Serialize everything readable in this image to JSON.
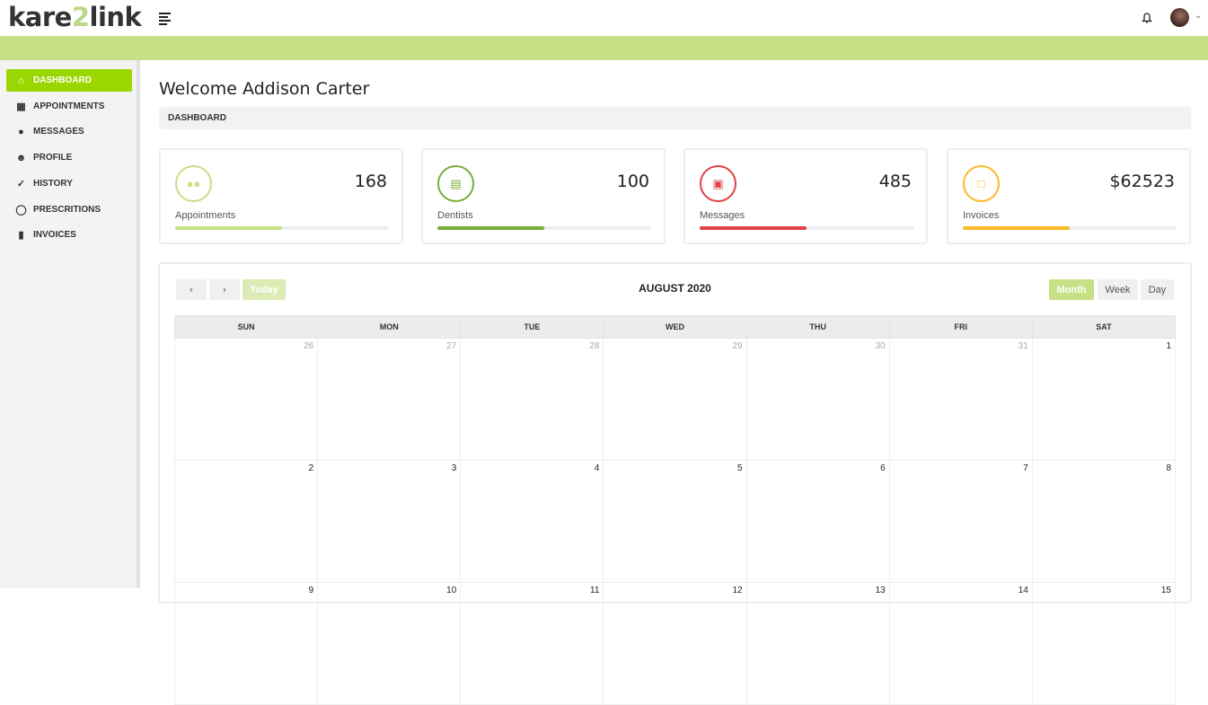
{
  "app": {
    "logo_pre": "kare",
    "logo_num": "2",
    "logo_post": "link"
  },
  "sidebar": {
    "items": [
      {
        "label": "DASHBOARD",
        "icon": "home-icon",
        "active": true
      },
      {
        "label": "APPOINTMENTS",
        "icon": "calendar-icon"
      },
      {
        "label": "MESSAGES",
        "icon": "messenger-icon"
      },
      {
        "label": "PROFILE",
        "icon": "user-icon"
      },
      {
        "label": "HISTORY",
        "icon": "check-icon"
      },
      {
        "label": "PRESCRITIONS",
        "icon": "tag-icon"
      },
      {
        "label": "INVOICES",
        "icon": "bar-chart-icon"
      }
    ]
  },
  "page": {
    "title": "Welcome Addison Carter",
    "breadcrumb": "DASHBOARD"
  },
  "cards": [
    {
      "label": "Appointments",
      "value": "168",
      "color": "#c5e085",
      "icon": "users-icon",
      "progress": 50
    },
    {
      "label": "Dentists",
      "value": "100",
      "color": "#7aad3a",
      "icon": "card-icon",
      "progress": 50
    },
    {
      "label": "Messages",
      "value": "485",
      "color": "#e04045",
      "icon": "money-icon",
      "progress": 50
    },
    {
      "label": "Invoices",
      "value": "$62523",
      "color": "#fbb829",
      "icon": "folder-icon",
      "progress": 50
    }
  ],
  "calendar": {
    "title": "AUGUST 2020",
    "today": "Today",
    "views": [
      "Month",
      "Week",
      "Day"
    ],
    "active_view": "Month",
    "weekdays": [
      "SUN",
      "MON",
      "TUE",
      "WED",
      "THU",
      "FRI",
      "SAT"
    ],
    "weeks": [
      [
        "26",
        "27",
        "28",
        "29",
        "30",
        "31",
        "1"
      ],
      [
        "2",
        "3",
        "4",
        "5",
        "6",
        "7",
        "8"
      ],
      [
        "9",
        "10",
        "11",
        "12",
        "13",
        "14",
        "15"
      ]
    ],
    "other_month": [
      [
        true,
        true,
        true,
        true,
        true,
        true,
        false
      ],
      [
        false,
        false,
        false,
        false,
        false,
        false,
        false
      ],
      [
        false,
        false,
        false,
        false,
        false,
        false,
        false
      ]
    ]
  }
}
